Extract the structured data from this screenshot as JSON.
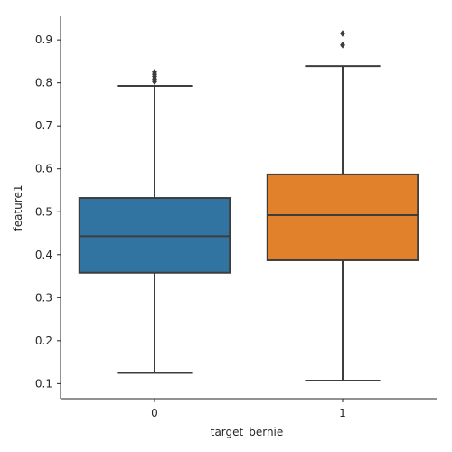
{
  "chart_data": {
    "type": "boxplot",
    "xlabel": "target_bernie",
    "ylabel": "feature1",
    "categories": [
      "0",
      "1"
    ],
    "ylim": [
      0.065,
      0.955
    ],
    "yticks": [
      0.1,
      0.2,
      0.3,
      0.4,
      0.5,
      0.6,
      0.7,
      0.8,
      0.9
    ],
    "ytick_labels": [
      "0.1",
      "0.2",
      "0.3",
      "0.4",
      "0.5",
      "0.6",
      "0.7",
      "0.8",
      "0.9"
    ],
    "boxes": [
      {
        "category": "0",
        "color": "#3274a1",
        "whisker_low": 0.125,
        "q1": 0.358,
        "median": 0.443,
        "q3": 0.532,
        "whisker_high": 0.793,
        "outliers": [
          0.803,
          0.809,
          0.815,
          0.82,
          0.825
        ]
      },
      {
        "category": "1",
        "color": "#e1812c",
        "whisker_low": 0.107,
        "q1": 0.387,
        "median": 0.492,
        "q3": 0.587,
        "whisker_high": 0.839,
        "outliers": [
          0.888,
          0.915
        ]
      }
    ],
    "grid": false,
    "spines": "left-bottom"
  }
}
